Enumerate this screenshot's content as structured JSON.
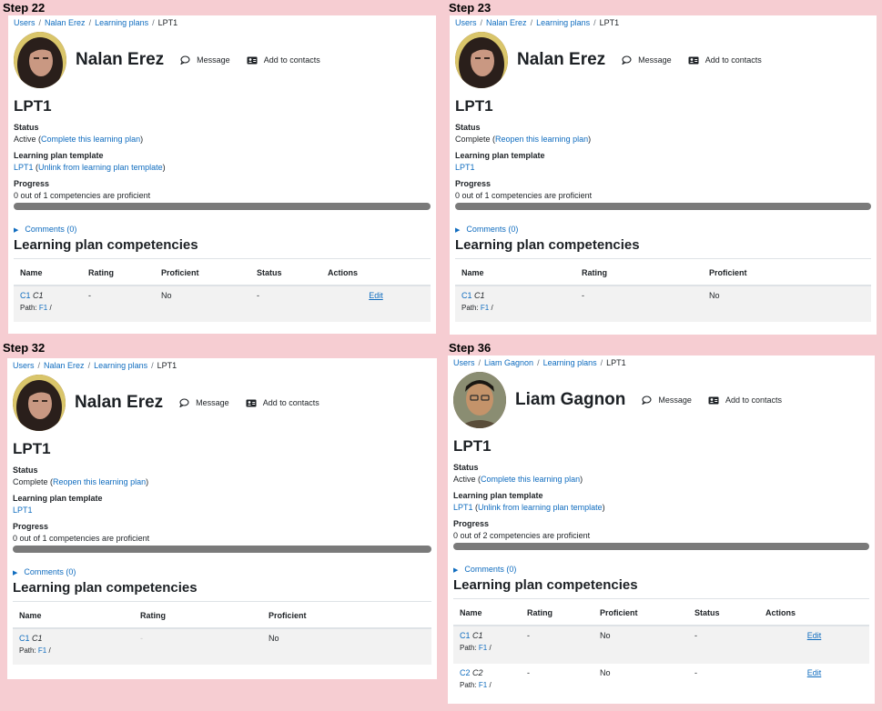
{
  "colors": {
    "background": "#f6cdd2",
    "link": "#0f6cbf",
    "progress": "#7a7a7a",
    "stripe": "#f2f2f2"
  },
  "icons": {
    "message": "speech-bubble-icon",
    "contacts": "address-card-icon",
    "comments_toggle": "caret-right-icon"
  },
  "panels": [
    {
      "step": "Step 22",
      "breadcrumb": [
        "Users",
        "Nalan Erez",
        "Learning plans",
        "LPT1"
      ],
      "user": "Nalan Erez",
      "message": "Message",
      "add_contacts": "Add to contacts",
      "plan": "LPT1",
      "status_label": "Status",
      "status_value": "Active (",
      "status_link": "Complete this learning plan",
      "status_close": ")",
      "template_label": "Learning plan template",
      "template_link": "LPT1",
      "template_paren": " (",
      "template_action": "Unlink from learning plan template",
      "template_close": ")",
      "progress_label": "Progress",
      "progress_text": "0 out of 1 competencies are proficient",
      "progress_fraction": 0,
      "comments": "Comments (0)",
      "comp_heading": "Learning plan competencies",
      "columns": [
        "Name",
        "Rating",
        "Proficient",
        "Status",
        "Actions"
      ],
      "rows": [
        {
          "code": "C1",
          "name": "C1",
          "path_label": "Path:",
          "path": "F1",
          "path_sep": "/",
          "rating": "-",
          "proficient": "No",
          "status": "-",
          "action": "Edit"
        }
      ]
    },
    {
      "step": "Step 23",
      "breadcrumb": [
        "Users",
        "Nalan Erez",
        "Learning plans",
        "LPT1"
      ],
      "user": "Nalan Erez",
      "message": "Message",
      "add_contacts": "Add to contacts",
      "plan": "LPT1",
      "status_label": "Status",
      "status_value": "Complete (",
      "status_link": "Reopen this learning plan",
      "status_close": ")",
      "template_label": "Learning plan template",
      "template_link": "LPT1",
      "progress_label": "Progress",
      "progress_text": "0 out of 1 competencies are proficient",
      "progress_fraction": 0,
      "comments": "Comments (0)",
      "comp_heading": "Learning plan competencies",
      "columns": [
        "Name",
        "Rating",
        "Proficient"
      ],
      "rows": [
        {
          "code": "C1",
          "name": "C1",
          "path_label": "Path:",
          "path": "F1",
          "path_sep": "/",
          "rating": "-",
          "proficient": "No"
        }
      ]
    },
    {
      "step": "Step 32",
      "breadcrumb": [
        "Users",
        "Nalan Erez",
        "Learning plans",
        "LPT1"
      ],
      "user": "Nalan Erez",
      "message": "Message",
      "add_contacts": "Add to contacts",
      "plan": "LPT1",
      "status_label": "Status",
      "status_value": "Complete (",
      "status_link": "Reopen this learning plan",
      "status_close": ")",
      "template_label": "Learning plan template",
      "template_link": "LPT1",
      "progress_label": "Progress",
      "progress_text": "0 out of 1 competencies are proficient",
      "progress_fraction": 0,
      "comments": "Comments (0)",
      "comp_heading": "Learning plan competencies",
      "columns": [
        "Name",
        "Rating",
        "Proficient"
      ],
      "rows": [
        {
          "code": "C1",
          "name": "C1",
          "path_label": "Path:",
          "path": "F1",
          "path_sep": "/",
          "rating": "-",
          "proficient": "No"
        }
      ]
    },
    {
      "step": "Step 36",
      "breadcrumb": [
        "Users",
        "Liam Gagnon",
        "Learning plans",
        "LPT1"
      ],
      "user": "Liam Gagnon",
      "message": "Message",
      "add_contacts": "Add to contacts",
      "plan": "LPT1",
      "status_label": "Status",
      "status_value": "Active (",
      "status_link": "Complete this learning plan",
      "status_close": ")",
      "template_label": "Learning plan template",
      "template_link": "LPT1",
      "template_paren": " (",
      "template_action": "Unlink from learning plan template",
      "template_close": ")",
      "progress_label": "Progress",
      "progress_text": "0 out of 2 competencies are proficient",
      "progress_fraction": 0,
      "comments": "Comments (0)",
      "comp_heading": "Learning plan competencies",
      "columns": [
        "Name",
        "Rating",
        "Proficient",
        "Status",
        "Actions"
      ],
      "rows": [
        {
          "code": "C1",
          "name": "C1",
          "path_label": "Path:",
          "path": "F1",
          "path_sep": "/",
          "rating": "-",
          "proficient": "No",
          "status": "-",
          "action": "Edit"
        },
        {
          "code": "C2",
          "name": "C2",
          "path_label": "Path:",
          "path": "F1",
          "path_sep": "/",
          "rating": "-",
          "proficient": "No",
          "status": "-",
          "action": "Edit"
        }
      ]
    }
  ]
}
